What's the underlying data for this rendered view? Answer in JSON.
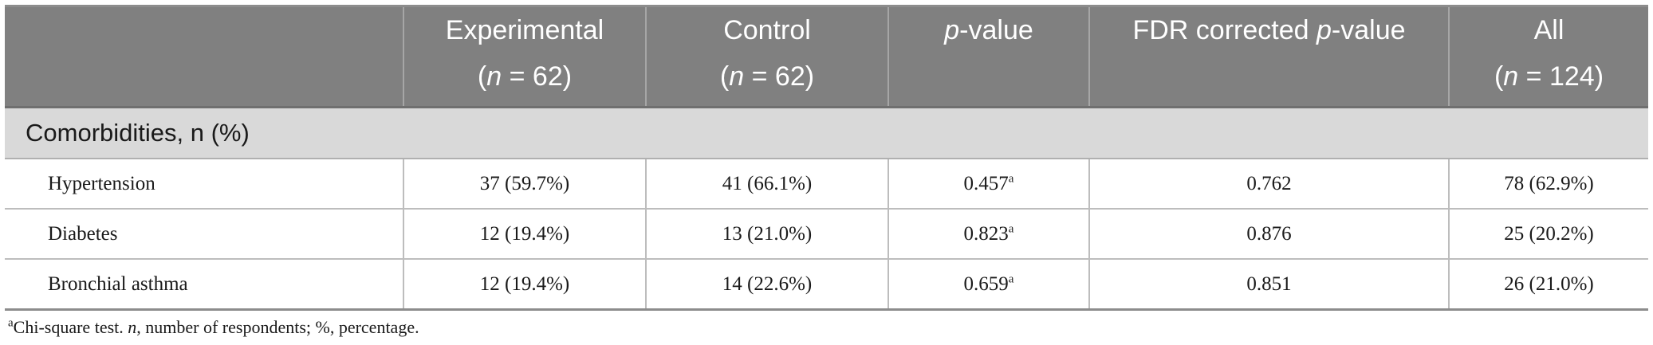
{
  "table": {
    "header": {
      "experimental": {
        "label": "Experimental",
        "n_prefix": "(",
        "n_var": "n",
        "n_value": " = 62)"
      },
      "control": {
        "label": "Control",
        "n_prefix": "(",
        "n_var": "n",
        "n_value": " = 62)"
      },
      "pvalue": {
        "p": "p",
        "rest": "-value"
      },
      "fdr": {
        "prefix": "FDR corrected ",
        "p": "p",
        "rest": "-value"
      },
      "all": {
        "label": "All",
        "n_prefix": "(",
        "n_var": "n",
        "n_value": " = 124)"
      }
    },
    "section_label": "Comorbidities, n (%)",
    "rows": [
      {
        "name": "Hypertension",
        "experimental": "37 (59.7%)",
        "control": "41 (66.1%)",
        "pvalue": "0.457",
        "pvalue_sup": "a",
        "fdr": "0.762",
        "all": "78 (62.9%)"
      },
      {
        "name": "Diabetes",
        "experimental": "12 (19.4%)",
        "control": "13 (21.0%)",
        "pvalue": "0.823",
        "pvalue_sup": "a",
        "fdr": "0.876",
        "all": "25 (20.2%)"
      },
      {
        "name": "Bronchial asthma",
        "experimental": "12 (19.4%)",
        "control": "14 (22.6%)",
        "pvalue": "0.659",
        "pvalue_sup": "a",
        "fdr": "0.851",
        "all": "26 (21.0%)"
      }
    ]
  },
  "footnote": {
    "sup": "a",
    "text1": "Chi-square test. ",
    "n_var": "n",
    "text2": ", number of respondents; %, percentage."
  }
}
